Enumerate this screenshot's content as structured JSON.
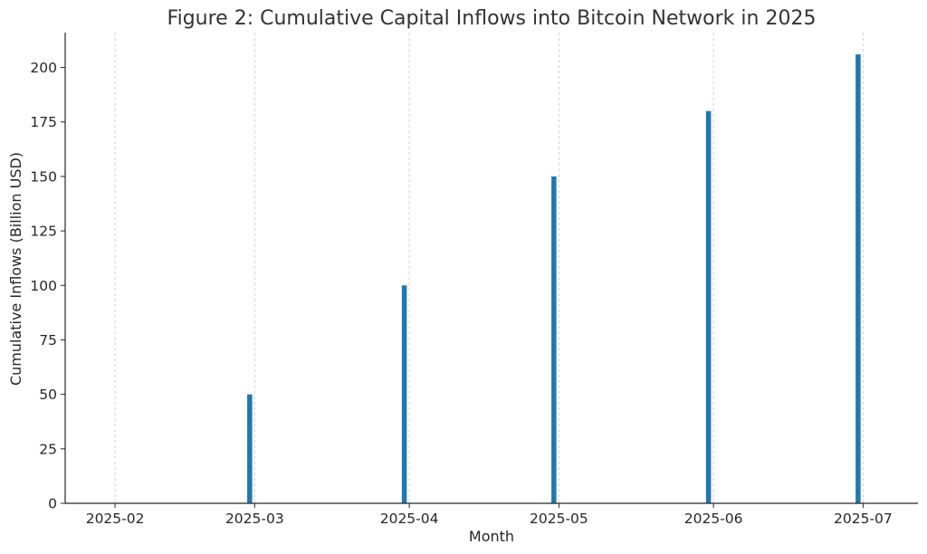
{
  "chart_data": {
    "type": "bar",
    "title": "Figure 2: Cumulative Capital Inflows into Bitcoin Network in 2025",
    "xlabel": "Month",
    "ylabel": "Cumulative Inflows (Billion USD)",
    "x_ticks": [
      "2025-02",
      "2025-03",
      "2025-04",
      "2025-05",
      "2025-06",
      "2025-07"
    ],
    "y_ticks": [
      "0",
      "25",
      "50",
      "75",
      "100",
      "125",
      "150",
      "175",
      "200"
    ],
    "ylim": [
      0,
      216
    ],
    "xlim": [
      "2025-01-22",
      "2025-07-12"
    ],
    "grid": "x-dashed",
    "bar_color": "#1f77b4",
    "series": [
      {
        "dates": [
          "2025-02-28",
          "2025-03-31",
          "2025-04-30",
          "2025-05-31",
          "2025-06-30"
        ],
        "values": [
          50,
          100,
          150,
          180,
          206
        ]
      }
    ]
  }
}
